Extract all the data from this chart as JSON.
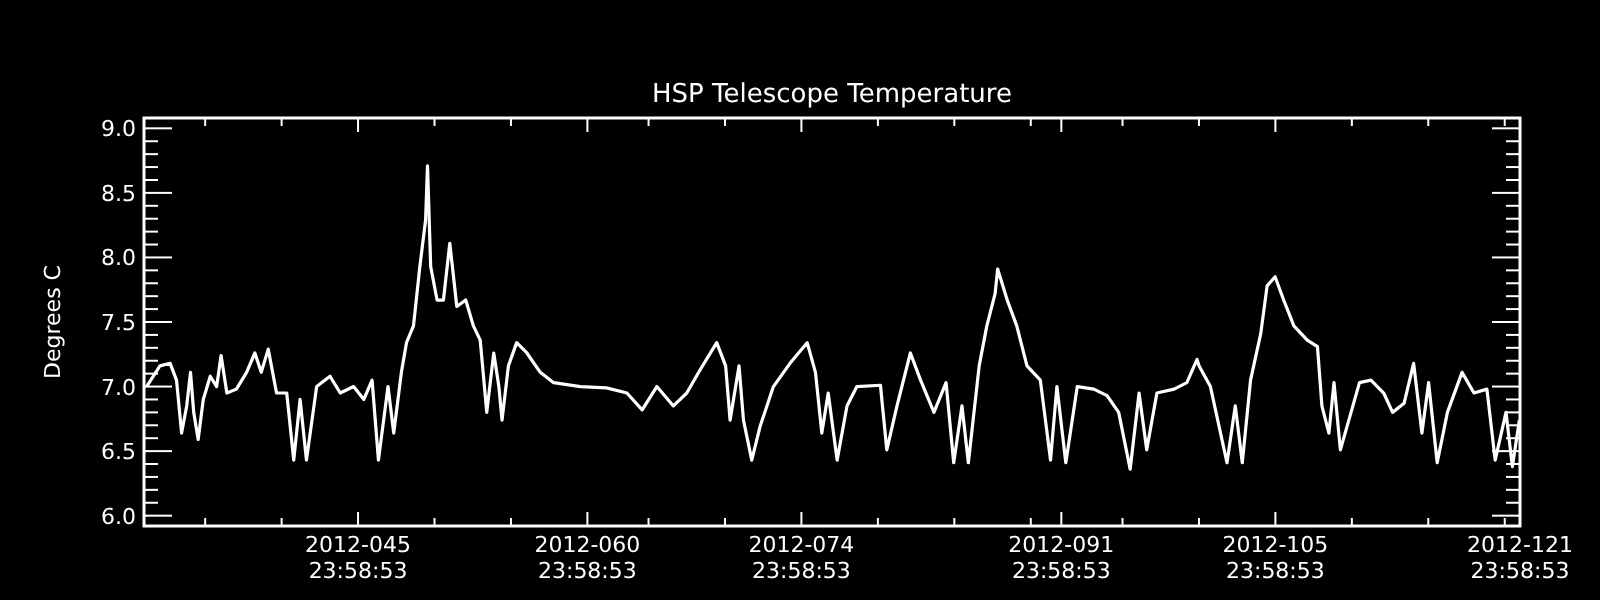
{
  "chart_data": {
    "type": "line",
    "title": "HSP Telescope Temperature",
    "ylabel": "Degrees C",
    "x": [
      "2012-02-01T04:00",
      "2012-02-02T01:00",
      "2012-02-02T17:00",
      "2012-02-03T03:00",
      "2012-02-03T11:00",
      "2012-02-03T19:00",
      "2012-02-04T01:00",
      "2012-02-04T06:00",
      "2012-02-04T13:00",
      "2012-02-04T21:00",
      "2012-02-05T08:00",
      "2012-02-05T18:00",
      "2012-02-06T01:00",
      "2012-02-06T10:00",
      "2012-02-07T01:00",
      "2012-02-07T17:00",
      "2012-02-08T06:00",
      "2012-02-08T16:00",
      "2012-02-09T03:00",
      "2012-02-09T16:00",
      "2012-02-10T08:00",
      "2012-02-10T19:00",
      "2012-02-11T05:00",
      "2012-02-11T15:00",
      "2012-02-12T07:00",
      "2012-02-13T04:00",
      "2012-02-13T20:00",
      "2012-02-14T17:00",
      "2012-02-15T09:00",
      "2012-02-15T22:00",
      "2012-02-16T08:00",
      "2012-02-16T23:00",
      "2012-02-17T08:00",
      "2012-02-17T20:00",
      "2012-02-18T04:00",
      "2012-02-18T15:00",
      "2012-02-19T01:00",
      "2012-02-19T10:00",
      "2012-02-19T13:00",
      "2012-02-19T18:00",
      "2012-02-20T04:00",
      "2012-02-20T14:00",
      "2012-02-21T00:00",
      "2012-02-21T11:00",
      "2012-02-22T01:00",
      "2012-02-22T13:00",
      "2012-02-22T23:45",
      "2012-02-23T10:00",
      "2012-02-23T21:00",
      "2012-02-24T05:00",
      "2012-02-24T10:00",
      "2012-02-24T20:00",
      "2012-02-25T09:00",
      "2012-02-26T01:00",
      "2012-02-26T22:00",
      "2012-02-27T19:00",
      "2012-02-29T13:00",
      "2012-03-02T06:00",
      "2012-03-03T14:00",
      "2012-03-04T14:00",
      "2012-03-05T13:00",
      "2012-03-06T15:00",
      "2012-03-07T12:00",
      "2012-03-08T09:00",
      "2012-03-09T11:00",
      "2012-03-10T01:00",
      "2012-03-10T08:00",
      "2012-03-10T22:00",
      "2012-03-11T05:00",
      "2012-03-11T18:00",
      "2012-03-12T07:00",
      "2012-03-13T04:00",
      "2012-03-14T06:00",
      "2012-03-15T09:00",
      "2012-03-15T22:00",
      "2012-03-16T08:00",
      "2012-03-16T18:00",
      "2012-03-17T08:00",
      "2012-03-17T23:30",
      "2012-03-18T15:00",
      "2012-03-20T04:00",
      "2012-03-20T14:00",
      "2012-03-21T06:00",
      "2012-03-22T03:00",
      "2012-03-22T19:00",
      "2012-03-23T16:00",
      "2012-03-24T11:00",
      "2012-03-24T23:00",
      "2012-03-25T12:00",
      "2012-03-25T22:00",
      "2012-03-26T15:00",
      "2012-03-27T03:00",
      "2012-03-27T16:00",
      "2012-03-27T20:00",
      "2012-03-28T11:00",
      "2012-03-29T02:00",
      "2012-03-29T18:00",
      "2012-03-30T15:00",
      "2012-03-31T07:00",
      "2012-03-31T17:00",
      "2012-04-01T07:00",
      "2012-04-02T01:00",
      "2012-04-03T03:00",
      "2012-04-03T23:45",
      "2012-04-04T18:00",
      "2012-04-05T12:00",
      "2012-04-06T02:00",
      "2012-04-06T14:00",
      "2012-04-07T06:00",
      "2012-04-08T09:00",
      "2012-04-09T05:00",
      "2012-04-09T21:00",
      "2012-04-10T00:15",
      "2012-04-10T18:00",
      "2012-04-11T20:00",
      "2012-04-12T09:00",
      "2012-04-12T20:00",
      "2012-04-13T09:00",
      "2012-04-14T01:00",
      "2012-04-14T11:00",
      "2012-04-14T23:30",
      "2012-04-15T13:00",
      "2012-04-16T05:00",
      "2012-04-17T02:00",
      "2012-04-17T18:00",
      "2012-04-18T01:00",
      "2012-04-18T12:00",
      "2012-04-18T20:00",
      "2012-04-19T06:00",
      "2012-04-20T12:00",
      "2012-04-21T06:00",
      "2012-04-22T02:00",
      "2012-04-22T16:00",
      "2012-04-23T10:00",
      "2012-04-24T01:00",
      "2012-04-24T14:00",
      "2012-04-25T00:30",
      "2012-04-25T14:00",
      "2012-04-26T06:00",
      "2012-04-27T05:00",
      "2012-04-27T23:45",
      "2012-04-28T20:00",
      "2012-04-29T09:00",
      "2012-04-30T02:00",
      "2012-04-30T12:00",
      "2012-04-30T23:00"
    ],
    "series": [
      {
        "color": "#ffffff",
        "values": [
          7.0,
          7.16,
          7.18,
          7.05,
          6.64,
          6.85,
          7.11,
          6.8,
          6.59,
          6.9,
          7.08,
          7.0,
          7.24,
          6.95,
          6.98,
          7.11,
          7.26,
          7.11,
          7.29,
          6.95,
          6.95,
          6.43,
          6.9,
          6.43,
          7.0,
          7.08,
          6.95,
          7.0,
          6.9,
          7.05,
          6.43,
          7.0,
          6.64,
          7.11,
          7.34,
          7.47,
          7.93,
          8.29,
          8.71,
          7.93,
          7.67,
          7.67,
          8.11,
          7.62,
          7.67,
          7.47,
          7.36,
          6.8,
          7.26,
          7.0,
          6.74,
          7.16,
          7.34,
          7.26,
          7.11,
          7.03,
          7.0,
          6.99,
          6.95,
          6.82,
          7.0,
          6.85,
          6.95,
          7.13,
          7.34,
          7.16,
          6.74,
          7.16,
          6.74,
          6.43,
          6.69,
          7.0,
          7.18,
          7.34,
          7.11,
          6.64,
          6.95,
          6.43,
          6.85,
          7.0,
          7.01,
          6.51,
          6.85,
          7.26,
          7.05,
          6.8,
          7.03,
          6.41,
          6.85,
          6.41,
          7.16,
          7.47,
          7.72,
          7.91,
          7.67,
          7.47,
          7.16,
          7.05,
          6.43,
          7.0,
          6.41,
          7.0,
          6.98,
          6.93,
          6.8,
          6.36,
          6.95,
          6.51,
          6.95,
          6.98,
          7.03,
          7.21,
          7.16,
          7.0,
          6.41,
          6.85,
          6.41,
          7.05,
          7.41,
          7.78,
          7.85,
          7.67,
          7.47,
          7.36,
          7.31,
          6.85,
          6.64,
          7.03,
          6.51,
          7.03,
          7.05,
          6.95,
          6.8,
          6.87,
          7.18,
          6.64,
          7.03,
          6.41,
          6.8,
          7.11,
          6.95,
          6.98,
          6.43,
          6.8,
          6.38,
          6.74
        ]
      }
    ],
    "xlim": [
      "2012-01-31T23:58",
      "2012-04-30T23:58"
    ],
    "xticks": [
      {
        "value": "2012-02-05",
        "label": null
      },
      {
        "value": "2012-02-10",
        "label": null
      },
      {
        "value": "2012-02-14T23:58",
        "label": "2012-045\n23:58:53"
      },
      {
        "value": "2012-02-20",
        "label": null
      },
      {
        "value": "2012-02-25",
        "label": null
      },
      {
        "value": "2012-02-29T23:58",
        "label": "2012-060\n23:58:53"
      },
      {
        "value": "2012-03-05",
        "label": null
      },
      {
        "value": "2012-03-10",
        "label": null
      },
      {
        "value": "2012-03-14T23:58",
        "label": "2012-074\n23:58:53"
      },
      {
        "value": "2012-03-20",
        "label": null
      },
      {
        "value": "2012-03-25",
        "label": null
      },
      {
        "value": "2012-03-30",
        "label": null
      },
      {
        "value": "2012-03-31T23:58",
        "label": "2012-091\n23:58:53"
      },
      {
        "value": "2012-04-05",
        "label": null
      },
      {
        "value": "2012-04-10",
        "label": null
      },
      {
        "value": "2012-04-14T23:58",
        "label": "2012-105\n23:58:53"
      },
      {
        "value": "2012-04-20",
        "label": null
      },
      {
        "value": "2012-04-25",
        "label": null
      },
      {
        "value": "2012-04-30",
        "label": null
      },
      {
        "value": "2012-04-30T23:58",
        "label": "2012-121\n23:58:53"
      }
    ],
    "ylim": [
      5.92,
      9.08
    ],
    "yticks": [
      {
        "value": 6,
        "label": "6.0"
      },
      6.5,
      {
        "value": 7,
        "label": "7.0"
      },
      7.5,
      {
        "value": 8,
        "label": "8.0"
      },
      8.5,
      {
        "value": 9,
        "label": "9.0"
      },
      {
        "value": 6.1,
        "label": null
      },
      {
        "value": 6.2,
        "label": null
      },
      {
        "value": 6.3,
        "label": null
      },
      {
        "value": 6.4,
        "label": null
      },
      {
        "value": 6.6,
        "label": null
      },
      {
        "value": 6.7,
        "label": null
      },
      {
        "value": 6.8,
        "label": null
      },
      {
        "value": 6.9,
        "label": null
      },
      {
        "value": 7.1,
        "label": null
      },
      {
        "value": 7.2,
        "label": null
      },
      {
        "value": 7.3,
        "label": null
      },
      {
        "value": 7.4,
        "label": null
      },
      {
        "value": 7.6,
        "label": null
      },
      {
        "value": 7.7,
        "label": null
      },
      {
        "value": 7.8,
        "label": null
      },
      {
        "value": 7.9,
        "label": null
      },
      {
        "value": 8.1,
        "label": null
      },
      {
        "value": 8.2,
        "label": null
      },
      {
        "value": 8.3,
        "label": null
      },
      {
        "value": 8.4,
        "label": null
      },
      {
        "value": 8.6,
        "label": null
      },
      {
        "value": 8.7,
        "label": null
      },
      {
        "value": 8.8,
        "label": null
      },
      {
        "value": 8.9,
        "label": null
      }
    ]
  }
}
